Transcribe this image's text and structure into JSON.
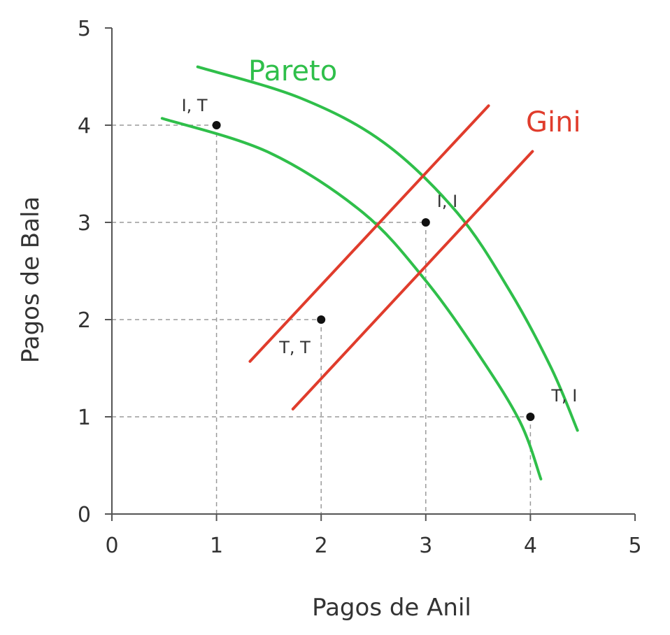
{
  "chart_data": {
    "type": "scatter",
    "title": "",
    "xlabel": "Pagos de Anil",
    "ylabel": "Pagos de Bala",
    "xlim": [
      0,
      5
    ],
    "ylim": [
      0,
      5
    ],
    "xticks": [
      "0",
      "1",
      "2",
      "3",
      "4",
      "5"
    ],
    "yticks": [
      "0",
      "1",
      "2",
      "3",
      "4",
      "5"
    ],
    "grid": "dashed guides from each point to the axes",
    "points": [
      {
        "label": "I, T",
        "x": 1,
        "y": 4
      },
      {
        "label": "I, I",
        "x": 3,
        "y": 3
      },
      {
        "label": "T, T",
        "x": 2,
        "y": 2
      },
      {
        "label": "T, I",
        "x": 4,
        "y": 1
      }
    ],
    "curves": [
      {
        "label": "Pareto",
        "color": "#2fbf4a",
        "lines": [
          [
            [
              0.82,
              4.6
            ],
            [
              1.8,
              4.28
            ],
            [
              2.6,
              3.82
            ],
            [
              3.3,
              3.1
            ],
            [
              3.8,
              2.3
            ],
            [
              4.2,
              1.5
            ],
            [
              4.45,
              0.86
            ]
          ],
          [
            [
              0.48,
              4.07
            ],
            [
              1.5,
              3.72
            ],
            [
              2.4,
              3.1
            ],
            [
              3.0,
              2.4
            ],
            [
              3.5,
              1.65
            ],
            [
              3.9,
              0.95
            ],
            [
              4.1,
              0.36
            ]
          ]
        ]
      },
      {
        "label": "Gini",
        "color": "#e03c2c",
        "lines": [
          [
            [
              1.32,
              1.57
            ],
            [
              3.6,
              4.2
            ]
          ],
          [
            [
              1.73,
              1.08
            ],
            [
              4.02,
              3.73
            ]
          ]
        ]
      }
    ]
  }
}
